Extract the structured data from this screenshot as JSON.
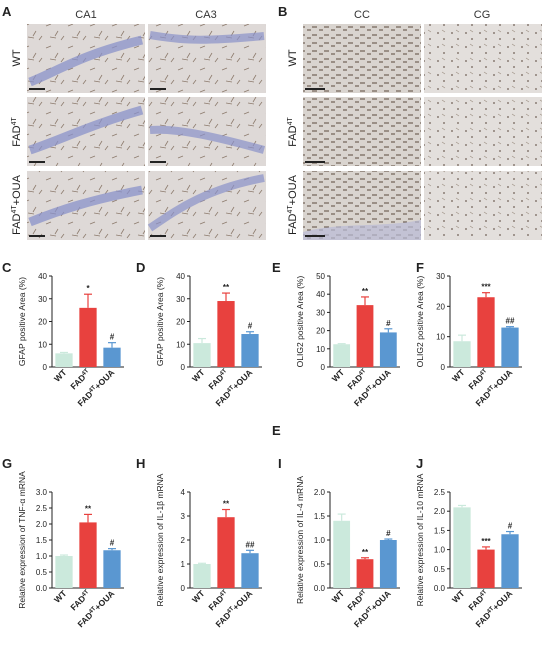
{
  "figure_labels": {
    "A": "A",
    "B": "B",
    "C": "C",
    "D": "D",
    "E": "E",
    "F": "F",
    "G": "G",
    "H": "H",
    "I": "I",
    "J": "J",
    "E_dup": "E"
  },
  "micrographs": {
    "left": {
      "columns": [
        "CA1",
        "CA3"
      ],
      "rows": [
        {
          "pre": "WT",
          "sup": ""
        },
        {
          "pre": "FAD",
          "sup": "4T"
        },
        {
          "pre": "FAD",
          "sup": "4T",
          "post": "+OUA"
        }
      ]
    },
    "right": {
      "columns": [
        "CC",
        "CG"
      ],
      "rows": [
        {
          "pre": "WT",
          "sup": ""
        },
        {
          "pre": "FAD",
          "sup": "4T"
        },
        {
          "pre": "FAD",
          "sup": "4T",
          "post": "+OUA"
        }
      ]
    }
  },
  "colors": {
    "wt": "#cbe9dc",
    "fad": "#e8413e",
    "oua": "#5a97d1",
    "tissue_hippo": "#ded9d7",
    "tissue_cc": "#dcd8d3",
    "nuclei": "#8a92c9",
    "stain": "#6e4f3a"
  },
  "chart_data": [
    {
      "id": "C",
      "type": "bar",
      "categories": [
        {
          "pre": "WT",
          "sup": "",
          "post": ""
        },
        {
          "pre": "FAD",
          "sup": "4T",
          "post": ""
        },
        {
          "pre": "FAD",
          "sup": "4T",
          "post": "+OUA"
        }
      ],
      "values": [
        6,
        26,
        8.5
      ],
      "errors": [
        0.4,
        6,
        2.2
      ],
      "significance": [
        "",
        "*",
        "#"
      ],
      "ylabel": "GFAP positive Area (%)",
      "ylim": [
        0,
        40
      ],
      "yticks": [
        0,
        10,
        20,
        30,
        40
      ]
    },
    {
      "id": "D",
      "type": "bar",
      "categories": [
        {
          "pre": "WT",
          "sup": "",
          "post": ""
        },
        {
          "pre": "FAD",
          "sup": "4T",
          "post": ""
        },
        {
          "pre": "FAD",
          "sup": "4T",
          "post": "+OUA"
        }
      ],
      "values": [
        10.5,
        29,
        14.5
      ],
      "errors": [
        2,
        3.5,
        1
      ],
      "significance": [
        "",
        "**",
        "#"
      ],
      "ylabel": "GFAP positive Area (%)",
      "ylim": [
        0,
        40
      ],
      "yticks": [
        0,
        10,
        20,
        30,
        40
      ]
    },
    {
      "id": "E",
      "type": "bar",
      "categories": [
        {
          "pre": "WT",
          "sup": "",
          "post": ""
        },
        {
          "pre": "FAD",
          "sup": "4T",
          "post": ""
        },
        {
          "pre": "FAD",
          "sup": "4T",
          "post": "+OUA"
        }
      ],
      "values": [
        12.5,
        34,
        19
      ],
      "errors": [
        0.3,
        4.5,
        2
      ],
      "significance": [
        "",
        "**",
        "#"
      ],
      "ylabel": "OLIG2 positive Area (%)",
      "ylim": [
        0,
        50
      ],
      "yticks": [
        0,
        10,
        20,
        30,
        40,
        50
      ]
    },
    {
      "id": "F",
      "type": "bar",
      "categories": [
        {
          "pre": "WT",
          "sup": "",
          "post": ""
        },
        {
          "pre": "FAD",
          "sup": "4T",
          "post": ""
        },
        {
          "pre": "FAD",
          "sup": "4T",
          "post": "+OUA"
        }
      ],
      "values": [
        8.5,
        23,
        13
      ],
      "errors": [
        2,
        1.5,
        0.3
      ],
      "significance": [
        "",
        "***",
        "##"
      ],
      "ylabel": "OLIG2 positive Area (%)",
      "ylim": [
        0,
        30
      ],
      "yticks": [
        0,
        10,
        20,
        30
      ]
    },
    {
      "id": "G",
      "type": "bar",
      "categories": [
        {
          "pre": "WT",
          "sup": "",
          "post": ""
        },
        {
          "pre": "FAD",
          "sup": "4T",
          "post": ""
        },
        {
          "pre": "FAD",
          "sup": "4T",
          "post": "+OUA"
        }
      ],
      "values": [
        1.0,
        2.05,
        1.18
      ],
      "errors": [
        0.03,
        0.25,
        0.05
      ],
      "significance": [
        "",
        "**",
        "#"
      ],
      "ylabel": "Relative expression of TNF-α mRNA",
      "ylim": [
        0,
        3.0
      ],
      "yticks": [
        0.0,
        0.5,
        1.0,
        1.5,
        2.0,
        2.5,
        3.0
      ],
      "tick_decimals": 1
    },
    {
      "id": "H",
      "type": "bar",
      "categories": [
        {
          "pre": "WT",
          "sup": "",
          "post": ""
        },
        {
          "pre": "FAD",
          "sup": "4T",
          "post": ""
        },
        {
          "pre": "FAD",
          "sup": "4T",
          "post": "+OUA"
        }
      ],
      "values": [
        1.0,
        2.95,
        1.45
      ],
      "errors": [
        0.03,
        0.32,
        0.12
      ],
      "significance": [
        "",
        "**",
        "##"
      ],
      "ylabel": "Relative expression of IL-1β mRNA",
      "ylim": [
        0,
        4
      ],
      "yticks": [
        0,
        1,
        2,
        3,
        4
      ],
      "tick_decimals": 0
    },
    {
      "id": "I",
      "type": "bar",
      "categories": [
        {
          "pre": "WT",
          "sup": "",
          "post": ""
        },
        {
          "pre": "FAD",
          "sup": "4T",
          "post": ""
        },
        {
          "pre": "FAD",
          "sup": "4T",
          "post": "+OUA"
        }
      ],
      "values": [
        1.4,
        0.6,
        1.0
      ],
      "errors": [
        0.14,
        0.03,
        0.02
      ],
      "significance": [
        "",
        "**",
        "#"
      ],
      "ylabel": "Relative expression of IL-4 mRNA",
      "ylim": [
        0,
        2.0
      ],
      "yticks": [
        0.0,
        0.5,
        1.0,
        1.5,
        2.0
      ],
      "tick_decimals": 1
    },
    {
      "id": "J",
      "type": "bar",
      "categories": [
        {
          "pre": "WT",
          "sup": "",
          "post": ""
        },
        {
          "pre": "FAD",
          "sup": "4T",
          "post": ""
        },
        {
          "pre": "FAD",
          "sup": "4T",
          "post": "+OUA"
        }
      ],
      "values": [
        2.1,
        1.0,
        1.4
      ],
      "errors": [
        0.05,
        0.07,
        0.07
      ],
      "significance": [
        "",
        "***",
        "#"
      ],
      "ylabel": "Relative expression of IL-10 mRNA",
      "ylim": [
        0,
        2.5
      ],
      "yticks": [
        0.0,
        0.5,
        1.0,
        1.5,
        2.0,
        2.5
      ],
      "tick_decimals": 1
    }
  ]
}
